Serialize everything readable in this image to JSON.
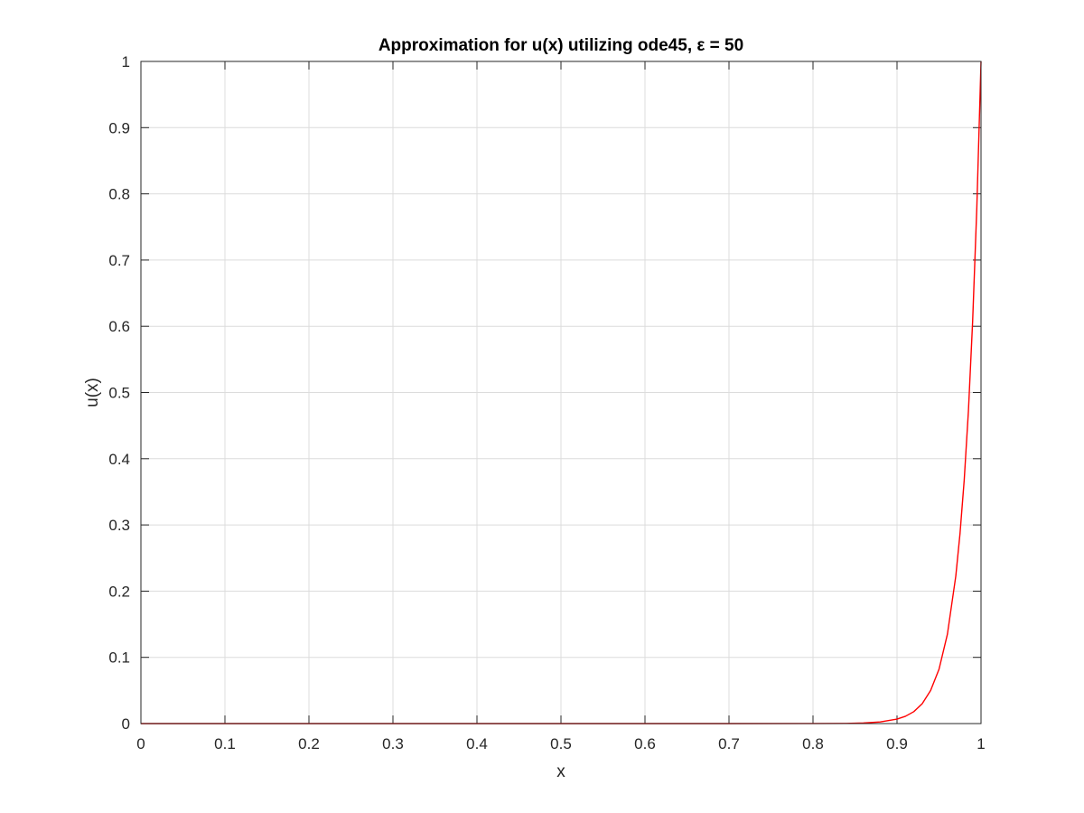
{
  "chart_data": {
    "type": "line",
    "title": "Approximation for u(x) utilizing ode45, ε = 50",
    "xlabel": "x",
    "ylabel": "u(x)",
    "xlim": [
      0,
      1
    ],
    "ylim": [
      0,
      1
    ],
    "xticks": [
      0,
      0.1,
      0.2,
      0.3,
      0.4,
      0.5,
      0.6,
      0.7,
      0.8,
      0.9,
      1
    ],
    "xtick_labels": [
      "0",
      "0.1",
      "0.2",
      "0.3",
      "0.4",
      "0.5",
      "0.6",
      "0.7",
      "0.8",
      "0.9",
      "1"
    ],
    "yticks": [
      0,
      0.1,
      0.2,
      0.3,
      0.4,
      0.5,
      0.6,
      0.7,
      0.8,
      0.9,
      1
    ],
    "ytick_labels": [
      "0",
      "0.1",
      "0.2",
      "0.3",
      "0.4",
      "0.5",
      "0.6",
      "0.7",
      "0.8",
      "0.9",
      "1"
    ],
    "grid": true,
    "series": [
      {
        "color": "#ff0000",
        "x": [
          0,
          0.1,
          0.2,
          0.3,
          0.4,
          0.5,
          0.6,
          0.7,
          0.8,
          0.84,
          0.86,
          0.88,
          0.9,
          0.91,
          0.92,
          0.93,
          0.94,
          0.95,
          0.96,
          0.97,
          0.975,
          0.98,
          0.985,
          0.99,
          0.995,
          1.0
        ],
        "y": [
          0,
          0,
          0,
          0,
          0,
          0,
          0,
          0,
          5e-05,
          0.0003,
          0.0009,
          0.0025,
          0.0067,
          0.011,
          0.018,
          0.03,
          0.05,
          0.082,
          0.135,
          0.223,
          0.287,
          0.368,
          0.472,
          0.607,
          0.779,
          1.0
        ]
      }
    ]
  }
}
